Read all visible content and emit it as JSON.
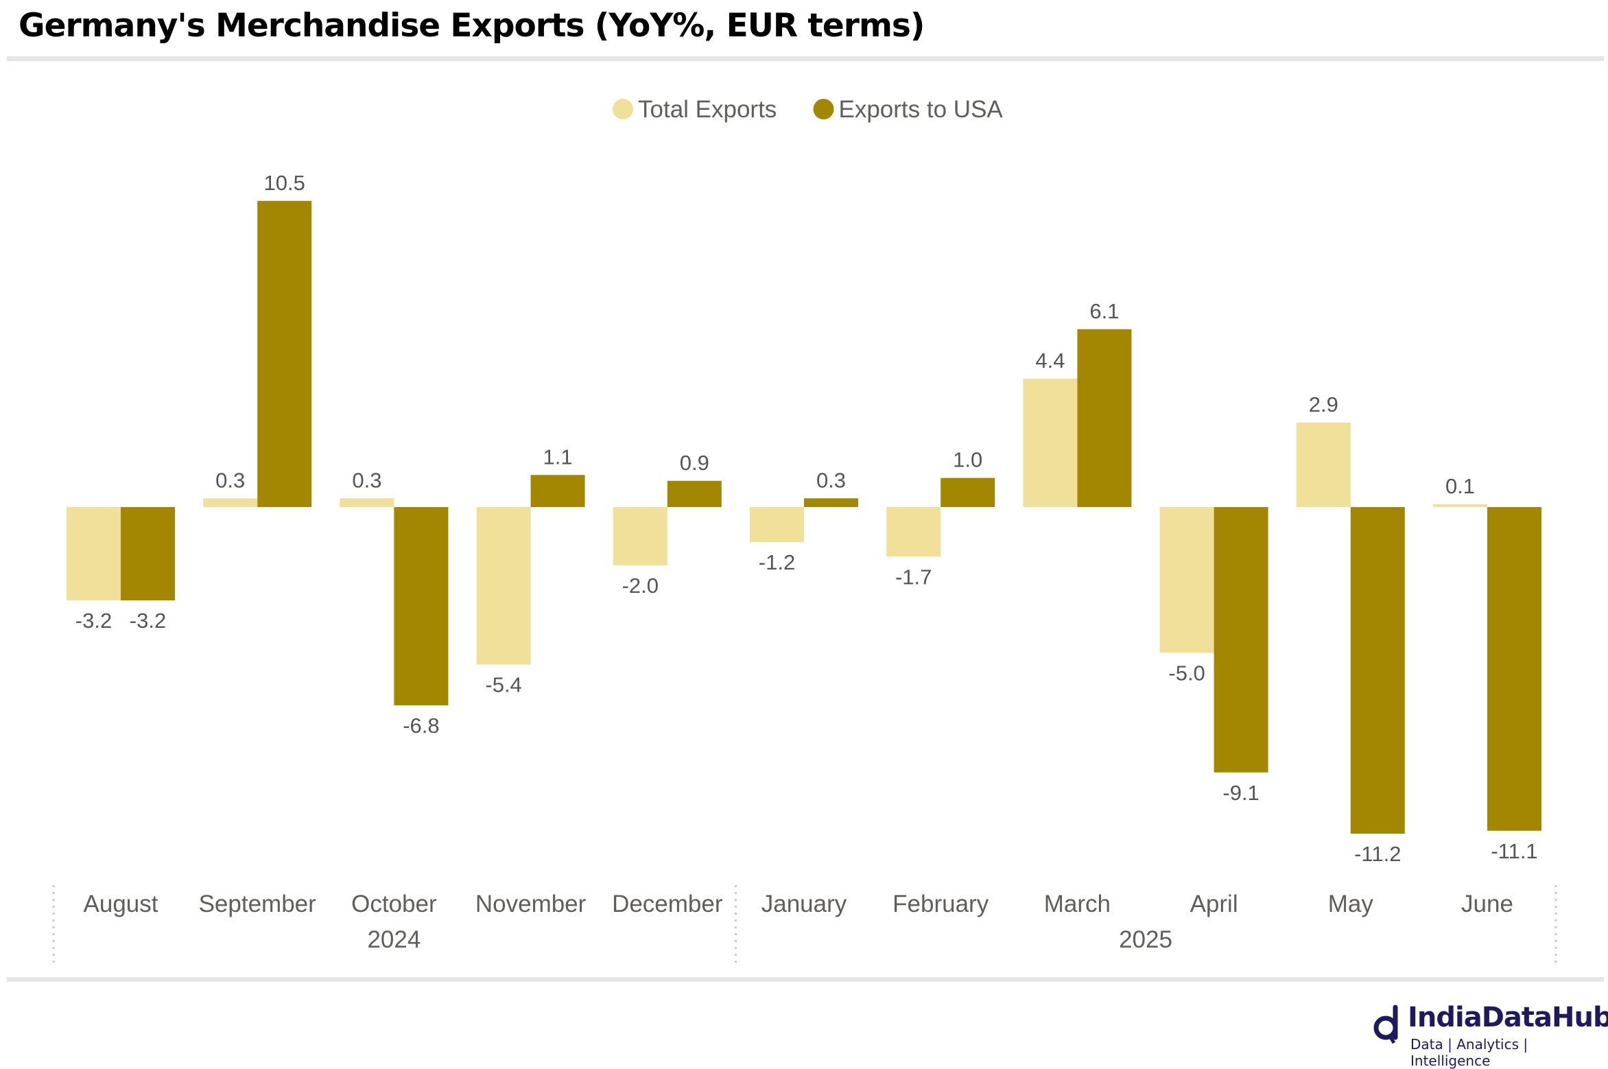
{
  "title": "Germany's Merchandise Exports (YoY%, EUR terms)",
  "chart_data": {
    "type": "bar",
    "title": "Germany's Merchandise Exports (YoY%, EUR terms)",
    "xlabel": "",
    "ylabel": "",
    "categories": [
      "August",
      "September",
      "October",
      "November",
      "December",
      "January",
      "February",
      "March",
      "April",
      "May",
      "June"
    ],
    "years": [
      {
        "label": "2024",
        "span": 5
      },
      {
        "label": "2025",
        "span": 6
      }
    ],
    "series": [
      {
        "name": "Total Exports",
        "color": "#f0e09a",
        "values": [
          -3.2,
          0.3,
          0.3,
          -5.4,
          -2.0,
          -1.2,
          -1.7,
          4.4,
          -5.0,
          2.9,
          0.1
        ]
      },
      {
        "name": "Exports to USA",
        "color": "#a38700",
        "values": [
          -3.2,
          10.5,
          -6.8,
          1.1,
          0.9,
          0.3,
          1.0,
          6.1,
          -9.1,
          -11.2,
          -11.1
        ]
      }
    ],
    "ylim": [
      -12,
      12
    ],
    "grid": false,
    "legend": "top-center",
    "data_labels": true
  },
  "logo": {
    "brand": "IndiaDataHub",
    "tagline": "Data | Analytics | Intelligence"
  }
}
